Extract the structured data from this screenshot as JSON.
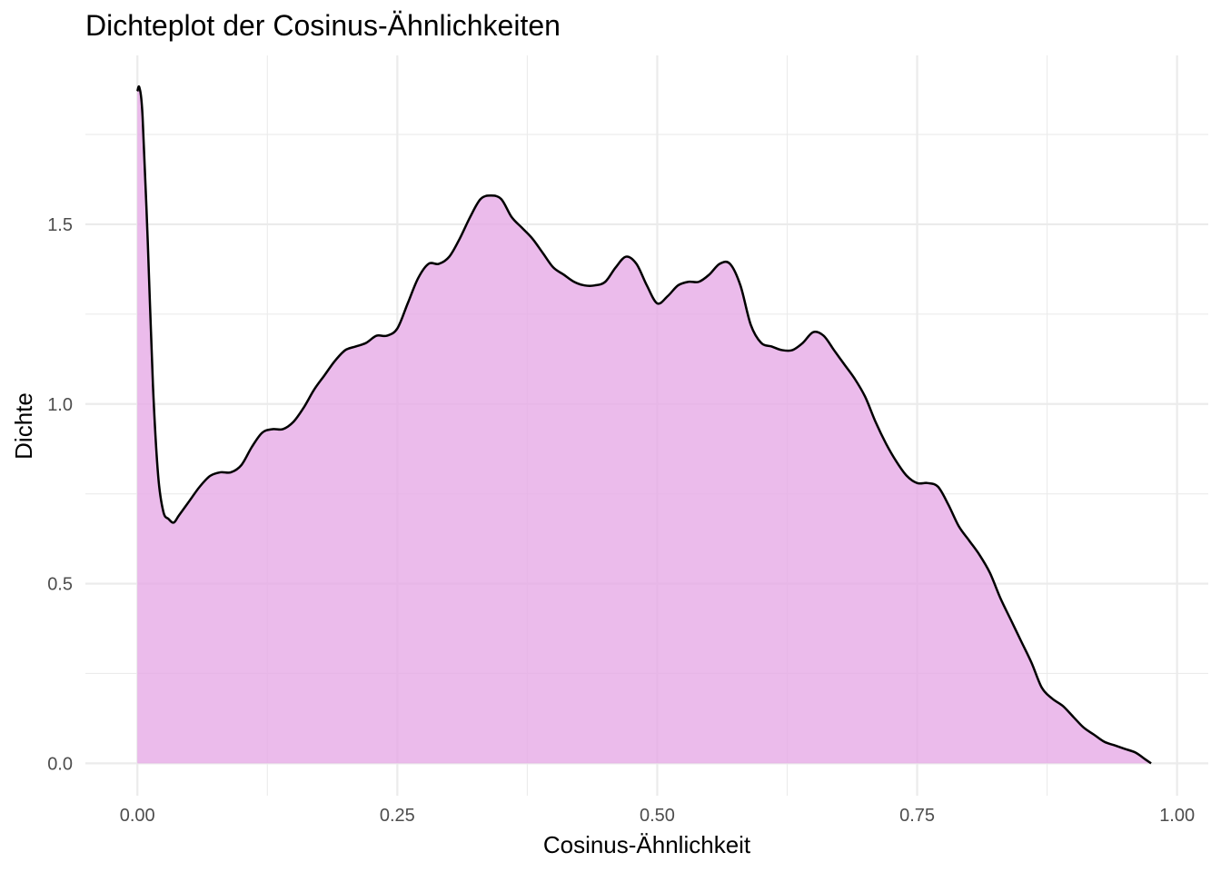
{
  "chart_data": {
    "type": "area",
    "title": "Dichteplot der Cosinus-Ähnlichkeiten",
    "xlabel": "Cosinus-Ähnlichkeit",
    "ylabel": "Dichte",
    "xlim": [
      -0.05,
      1.03
    ],
    "ylim": [
      -0.09,
      1.97
    ],
    "x_ticks": [
      {
        "value": 0.0,
        "label": "0.00"
      },
      {
        "value": 0.25,
        "label": "0.25"
      },
      {
        "value": 0.5,
        "label": "0.50"
      },
      {
        "value": 0.75,
        "label": "0.75"
      },
      {
        "value": 1.0,
        "label": "1.00"
      }
    ],
    "y_ticks": [
      {
        "value": 0.0,
        "label": "0.0"
      },
      {
        "value": 0.5,
        "label": "0.5"
      },
      {
        "value": 1.0,
        "label": "1.0"
      },
      {
        "value": 1.5,
        "label": "1.5"
      }
    ],
    "grid": true,
    "legend": "none",
    "fill_color": "#e6a8e6",
    "fill_opacity": 0.78,
    "line_color": "#000000",
    "series": [
      {
        "x": [
          0.0,
          0.002,
          0.005,
          0.01,
          0.015,
          0.02,
          0.025,
          0.03,
          0.035,
          0.04,
          0.05,
          0.06,
          0.07,
          0.08,
          0.09,
          0.1,
          0.11,
          0.12,
          0.13,
          0.14,
          0.15,
          0.16,
          0.17,
          0.18,
          0.19,
          0.2,
          0.21,
          0.22,
          0.23,
          0.24,
          0.25,
          0.26,
          0.27,
          0.28,
          0.29,
          0.3,
          0.31,
          0.32,
          0.33,
          0.34,
          0.35,
          0.36,
          0.37,
          0.38,
          0.39,
          0.4,
          0.41,
          0.42,
          0.43,
          0.44,
          0.45,
          0.46,
          0.47,
          0.48,
          0.49,
          0.5,
          0.51,
          0.52,
          0.53,
          0.54,
          0.55,
          0.56,
          0.57,
          0.58,
          0.59,
          0.6,
          0.61,
          0.62,
          0.63,
          0.64,
          0.65,
          0.66,
          0.67,
          0.68,
          0.69,
          0.7,
          0.71,
          0.72,
          0.73,
          0.74,
          0.75,
          0.76,
          0.77,
          0.78,
          0.79,
          0.8,
          0.81,
          0.82,
          0.83,
          0.84,
          0.85,
          0.86,
          0.87,
          0.88,
          0.89,
          0.9,
          0.91,
          0.92,
          0.93,
          0.94,
          0.95,
          0.96,
          0.97,
          0.975
        ],
        "y": [
          1.87,
          1.88,
          1.8,
          1.45,
          1.05,
          0.8,
          0.7,
          0.68,
          0.67,
          0.69,
          0.73,
          0.77,
          0.8,
          0.81,
          0.81,
          0.83,
          0.88,
          0.92,
          0.93,
          0.93,
          0.95,
          0.99,
          1.04,
          1.08,
          1.12,
          1.15,
          1.16,
          1.17,
          1.19,
          1.19,
          1.21,
          1.28,
          1.35,
          1.39,
          1.39,
          1.41,
          1.46,
          1.52,
          1.57,
          1.58,
          1.57,
          1.52,
          1.49,
          1.46,
          1.42,
          1.38,
          1.36,
          1.34,
          1.33,
          1.33,
          1.34,
          1.38,
          1.41,
          1.39,
          1.33,
          1.28,
          1.3,
          1.33,
          1.34,
          1.34,
          1.36,
          1.39,
          1.39,
          1.33,
          1.22,
          1.17,
          1.16,
          1.15,
          1.15,
          1.17,
          1.2,
          1.19,
          1.15,
          1.11,
          1.07,
          1.02,
          0.95,
          0.89,
          0.84,
          0.8,
          0.78,
          0.78,
          0.77,
          0.72,
          0.66,
          0.62,
          0.58,
          0.53,
          0.46,
          0.4,
          0.34,
          0.28,
          0.21,
          0.18,
          0.16,
          0.13,
          0.1,
          0.08,
          0.06,
          0.05,
          0.04,
          0.03,
          0.01,
          0.0
        ]
      }
    ]
  }
}
